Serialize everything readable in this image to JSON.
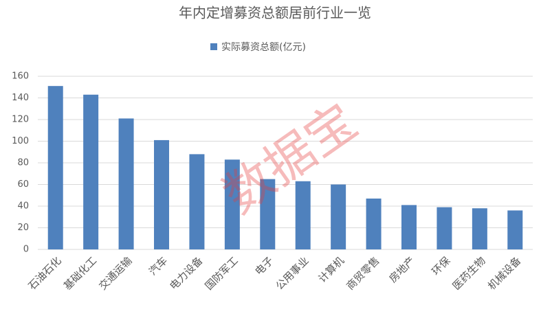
{
  "chart_data": {
    "type": "bar",
    "title": "年内定增募资总额居前行业一览",
    "watermark": "数据宝",
    "categories": [
      "石油石化",
      "基础化工",
      "交通运输",
      "汽车",
      "电力设备",
      "国防军工",
      "电子",
      "公用事业",
      "计算机",
      "商贸零售",
      "房地产",
      "环保",
      "医药生物",
      "机械设备"
    ],
    "series": [
      {
        "name": "实际募资总额(亿元)",
        "color": "#4f81bd",
        "values": [
          151,
          143,
          121,
          101,
          88,
          83,
          65,
          63,
          60,
          47,
          41,
          39,
          38,
          36
        ]
      }
    ],
    "ylim": [
      0,
      160
    ],
    "yticks": [
      0,
      20,
      40,
      60,
      80,
      100,
      120,
      140,
      160
    ],
    "grid": true,
    "legend": "top"
  }
}
